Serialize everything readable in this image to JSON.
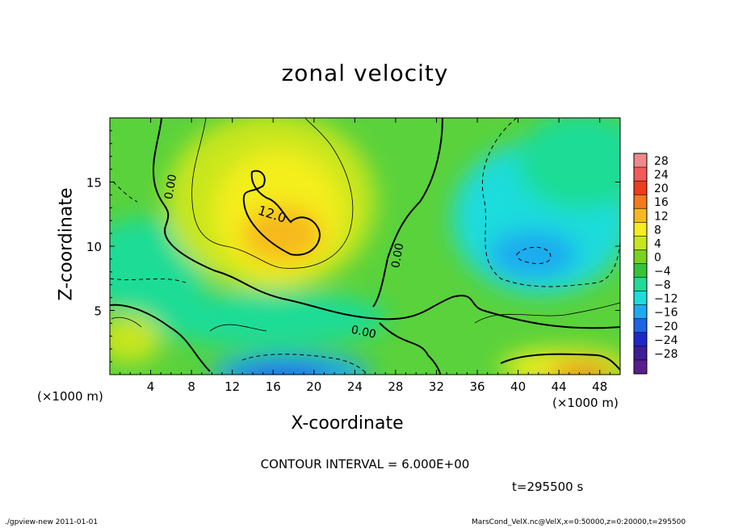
{
  "chart_data": {
    "type": "heatmap",
    "title": "zonal velocity",
    "xlabel": "X-coordinate",
    "ylabel": "Z-coordinate",
    "x_unit_left": "(×1000 m)",
    "x_unit_right": "(×1000 m)",
    "xlim": [
      0,
      50
    ],
    "ylim": [
      0,
      20
    ],
    "x_ticks": [
      4,
      8,
      12,
      16,
      20,
      24,
      28,
      32,
      36,
      40,
      44,
      48
    ],
    "y_ticks": [
      5,
      10,
      15
    ],
    "colorbar": {
      "levels": [
        28,
        24,
        20,
        16,
        12,
        8,
        4,
        0,
        -4,
        -8,
        -12,
        -16,
        -20,
        -24,
        -28
      ],
      "colors": [
        "#f08a8a",
        "#f25a5a",
        "#f03c1e",
        "#f47a1e",
        "#f6b91e",
        "#f4ee1e",
        "#c8e61e",
        "#78d21e",
        "#34c43a",
        "#1edc96",
        "#1edcdc",
        "#1eaaf0",
        "#1e64e6",
        "#1e28c8",
        "#3c1e96",
        "#5a1e8c"
      ]
    },
    "contour_labels": [
      "0.00",
      "12.0",
      "0.00",
      "0.00"
    ],
    "contour_interval": "CONTOUR INTERVAL = 6.000E+00",
    "time": "t=295500 s"
  },
  "footer": {
    "left": "./gpview-new   2011-01-01",
    "right": "MarsCond_VelX.nc@VelX,x=0:50000,z=0:20000,t=295500"
  }
}
